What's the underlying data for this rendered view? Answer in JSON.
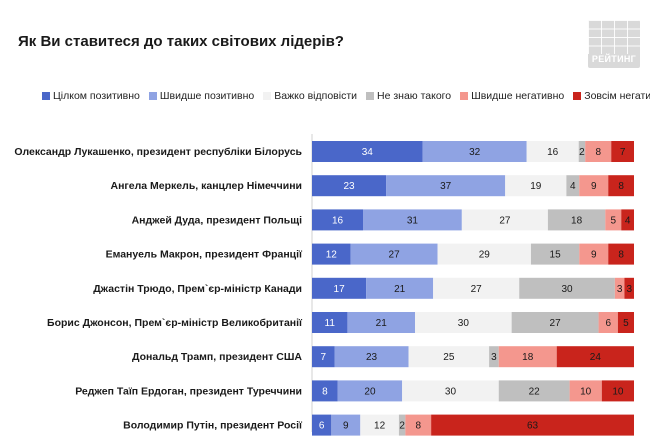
{
  "title": "Як Ви ставитеся до таких світових лідерів?",
  "logo": "РЕЙТИНГ",
  "chart_data": {
    "type": "bar",
    "orientation": "horizontal",
    "stacked": true,
    "normalized_percent": true,
    "legend_position": "top",
    "grid": false,
    "categories": [
      "Олександр Лукашенко, президент республіки Білорусь",
      "Ангела Меркель, канцлер Німеччини",
      "Анджей Дуда, президент Польщі",
      "Емануель Макрон, президент Франції",
      "Джастін Трюдо, Прем`єр-міністр Канади",
      "Борис Джонсон, Прем`єр-міністр Великобританії",
      "Дональд Трамп, президент США",
      "Реджеп Таїп Ердоган, президент Туреччини",
      "Володимир Путін, президент Росії"
    ],
    "series": [
      {
        "name": "Цілком позитивно",
        "color": "#4a67c9",
        "label_color": "#ffffff",
        "values": [
          34,
          23,
          16,
          12,
          17,
          11,
          7,
          8,
          6
        ]
      },
      {
        "name": "Швидше позитивно",
        "color": "#8fa3e3",
        "label_color": "#1a1a1a",
        "values": [
          32,
          37,
          31,
          27,
          21,
          21,
          23,
          20,
          9
        ]
      },
      {
        "name": "Важко відповісти",
        "color": "#f2f2f2",
        "label_color": "#1a1a1a",
        "values": [
          16,
          19,
          27,
          29,
          27,
          30,
          25,
          30,
          12
        ]
      },
      {
        "name": "Не знаю такого",
        "color": "#bfbfbf",
        "label_color": "#1a1a1a",
        "values": [
          2,
          4,
          18,
          15,
          30,
          27,
          3,
          22,
          2
        ]
      },
      {
        "name": "Швидше негативно",
        "color": "#f4978e",
        "label_color": "#1a1a1a",
        "values": [
          8,
          9,
          5,
          9,
          3,
          6,
          18,
          10,
          8
        ]
      },
      {
        "name": "Зовсім негативно",
        "color": "#c9241c",
        "label_color": "#1a1a1a",
        "values": [
          7,
          8,
          4,
          8,
          3,
          5,
          24,
          10,
          63
        ]
      }
    ]
  }
}
